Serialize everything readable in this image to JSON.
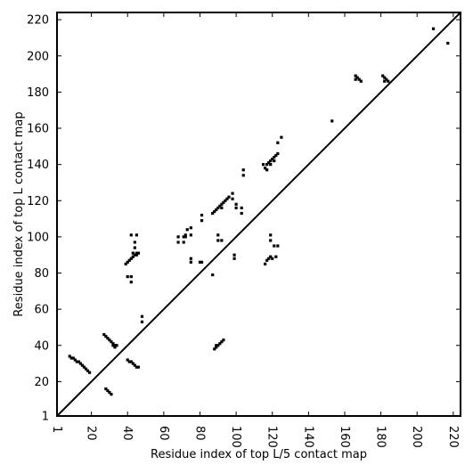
{
  "chart_data": {
    "type": "scatter",
    "title": "",
    "xlabel": "Residue index of top L/5 contact map",
    "ylabel": "Residue index of top L contact map",
    "xlim": [
      1,
      224
    ],
    "ylim": [
      1,
      224
    ],
    "x_ticks": [
      1,
      20,
      40,
      60,
      80,
      100,
      120,
      140,
      160,
      180,
      200,
      220
    ],
    "y_ticks": [
      1,
      20,
      40,
      60,
      80,
      100,
      120,
      140,
      160,
      180,
      200,
      220
    ],
    "diagonal": true,
    "marker": "square",
    "marker_color": "#000000",
    "series": [
      {
        "name": "",
        "points": [
          [
            8,
            34
          ],
          [
            9,
            33
          ],
          [
            10,
            33
          ],
          [
            11,
            32
          ],
          [
            12,
            31
          ],
          [
            13,
            31
          ],
          [
            14,
            30
          ],
          [
            15,
            29
          ],
          [
            16,
            28
          ],
          [
            17,
            27
          ],
          [
            18,
            26
          ],
          [
            19,
            25
          ],
          [
            27,
            46
          ],
          [
            28,
            45
          ],
          [
            29,
            44
          ],
          [
            30,
            43
          ],
          [
            31,
            42
          ],
          [
            32,
            41
          ],
          [
            33,
            40
          ],
          [
            34,
            40
          ],
          [
            32,
            40
          ],
          [
            33,
            39
          ],
          [
            28,
            16
          ],
          [
            29,
            15
          ],
          [
            30,
            14
          ],
          [
            31,
            13
          ],
          [
            39,
            85
          ],
          [
            40,
            86
          ],
          [
            41,
            87
          ],
          [
            42,
            88
          ],
          [
            43,
            89
          ],
          [
            44,
            90
          ],
          [
            45,
            91
          ],
          [
            46,
            91
          ],
          [
            43,
            91
          ],
          [
            45,
            90
          ],
          [
            44,
            94
          ],
          [
            44,
            97
          ],
          [
            42,
            101
          ],
          [
            45,
            101
          ],
          [
            40,
            78
          ],
          [
            42,
            78
          ],
          [
            42,
            75
          ],
          [
            48,
            53
          ],
          [
            48,
            56
          ],
          [
            40,
            32
          ],
          [
            41,
            31
          ],
          [
            42,
            31
          ],
          [
            43,
            30
          ],
          [
            44,
            29
          ],
          [
            45,
            28
          ],
          [
            46,
            28
          ],
          [
            68,
            97
          ],
          [
            68,
            100
          ],
          [
            71,
            97
          ],
          [
            71,
            100
          ],
          [
            72,
            100
          ],
          [
            72,
            101
          ],
          [
            73,
            104
          ],
          [
            75,
            101
          ],
          [
            75,
            105
          ],
          [
            75,
            86
          ],
          [
            75,
            88
          ],
          [
            80,
            86
          ],
          [
            81,
            86
          ],
          [
            81,
            109
          ],
          [
            81,
            112
          ],
          [
            87,
            113
          ],
          [
            88,
            114
          ],
          [
            89,
            115
          ],
          [
            90,
            116
          ],
          [
            91,
            117
          ],
          [
            92,
            118
          ],
          [
            93,
            119
          ],
          [
            94,
            120
          ],
          [
            95,
            121
          ],
          [
            96,
            122
          ],
          [
            92,
            116
          ],
          [
            98,
            121
          ],
          [
            98,
            124
          ],
          [
            100,
            116
          ],
          [
            100,
            118
          ],
          [
            103,
            116
          ],
          [
            103,
            113
          ],
          [
            104,
            137
          ],
          [
            104,
            134
          ],
          [
            90,
            101
          ],
          [
            90,
            98
          ],
          [
            92,
            98
          ],
          [
            99,
            88
          ],
          [
            99,
            90
          ],
          [
            87,
            79
          ],
          [
            88,
            38
          ],
          [
            89,
            39
          ],
          [
            90,
            40
          ],
          [
            91,
            41
          ],
          [
            92,
            42
          ],
          [
            93,
            43
          ],
          [
            89,
            40
          ],
          [
            116,
            138
          ],
          [
            117,
            140
          ],
          [
            118,
            141
          ],
          [
            119,
            142
          ],
          [
            120,
            143
          ],
          [
            121,
            144
          ],
          [
            122,
            145
          ],
          [
            123,
            146
          ],
          [
            119,
            140
          ],
          [
            121,
            142
          ],
          [
            117,
            137
          ],
          [
            115,
            140
          ],
          [
            123,
            152
          ],
          [
            125,
            155
          ],
          [
            116,
            85
          ],
          [
            117,
            87
          ],
          [
            118,
            88
          ],
          [
            119,
            89
          ],
          [
            120,
            88
          ],
          [
            121,
            95
          ],
          [
            123,
            95
          ],
          [
            122,
            89
          ],
          [
            119,
            98
          ],
          [
            119,
            101
          ],
          [
            153,
            164
          ],
          [
            166,
            189
          ],
          [
            167,
            188
          ],
          [
            168,
            187
          ],
          [
            169,
            186
          ],
          [
            166,
            187
          ],
          [
            181,
            189
          ],
          [
            182,
            188
          ],
          [
            183,
            187
          ],
          [
            184,
            186
          ],
          [
            182,
            186
          ],
          [
            209,
            215
          ],
          [
            217,
            207
          ]
        ]
      }
    ]
  }
}
